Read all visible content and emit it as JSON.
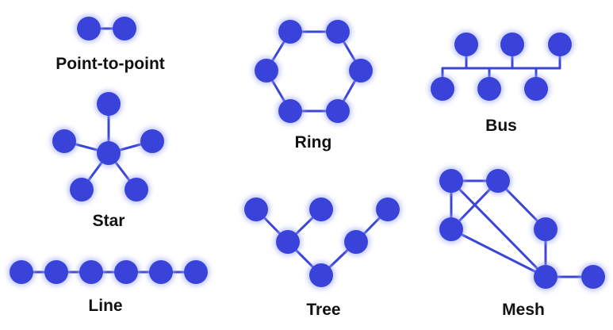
{
  "colors": {
    "node": "#3a43d9",
    "edge": "#3b45d6",
    "glow": "#9aa4ff",
    "label": "#111111",
    "background": "#ffffff"
  },
  "topologies": {
    "point_to_point": {
      "label": "Point-to-point"
    },
    "star": {
      "label": "Star"
    },
    "line": {
      "label": "Line"
    },
    "ring": {
      "label": "Ring"
    },
    "tree": {
      "label": "Tree"
    },
    "bus": {
      "label": "Bus"
    },
    "mesh": {
      "label": "Mesh"
    }
  }
}
